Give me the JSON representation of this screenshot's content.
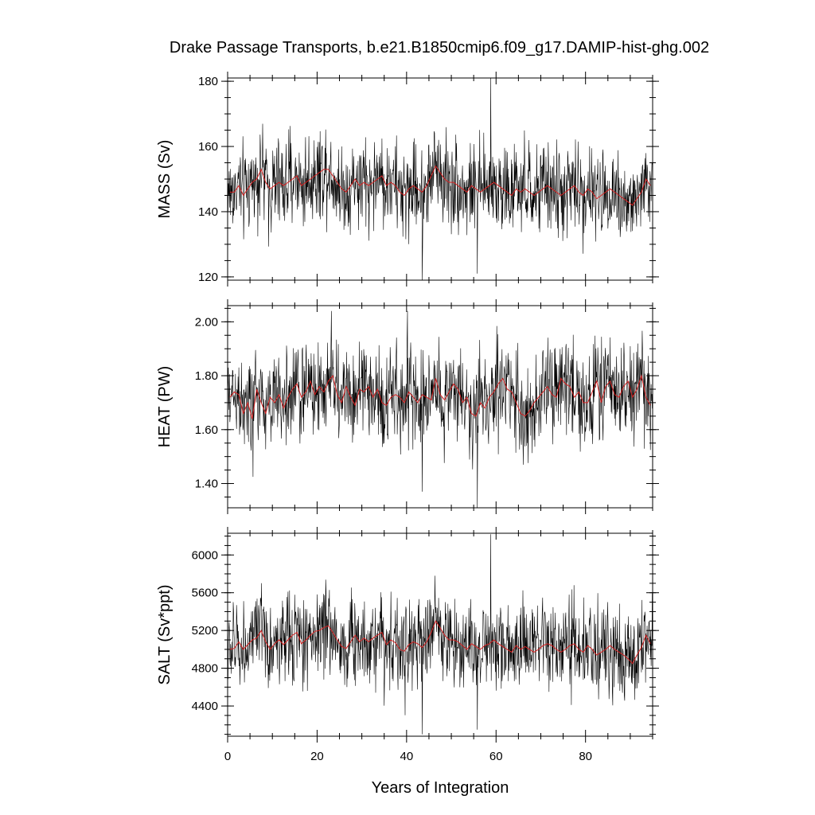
{
  "title": "Drake Passage Transports, b.e21.B1850cmip6.f09_g17.DAMIP-hist-ghg.002",
  "xlabel": "Years of Integration",
  "colors": {
    "raw": "#000000",
    "annual": "#d62020"
  },
  "chart_data": [
    {
      "type": "line",
      "panel": "mass",
      "ylabel": "MASS (Sv)",
      "xlim": [
        0,
        95
      ],
      "ylim": [
        119,
        181
      ],
      "yticks": [
        120,
        140,
        160,
        180
      ],
      "ytick_labels": [
        "120",
        "140",
        "160",
        "180"
      ],
      "xticks": [
        0,
        20,
        40,
        60,
        80
      ],
      "show_xtick_labels": false,
      "monthly_mean": 147.5,
      "monthly_std": 7,
      "annual_mean": [
        146,
        146,
        148,
        145,
        147,
        149,
        150,
        153,
        149,
        147,
        148,
        149,
        148,
        149,
        150,
        151,
        148,
        149,
        150,
        151,
        152,
        153,
        153,
        151,
        149,
        147,
        146,
        148,
        150,
        148,
        149,
        148,
        149,
        150,
        151,
        148,
        149,
        148,
        146,
        145,
        147,
        148,
        147,
        146,
        148,
        151,
        154,
        152,
        150,
        149,
        149,
        148,
        147,
        146,
        148,
        147,
        146,
        147,
        148,
        149,
        148,
        147,
        146,
        145,
        147,
        146,
        147,
        146,
        145,
        146,
        147,
        148,
        147,
        146,
        145,
        146,
        147,
        148,
        146,
        145,
        147,
        146,
        144,
        145,
        146,
        147,
        146,
        145,
        144,
        143,
        142,
        144,
        146,
        150,
        148
      ],
      "extremes": [
        [
          43.5,
          119
        ],
        [
          58.8,
          181
        ],
        [
          55.8,
          121
        ]
      ]
    },
    {
      "type": "line",
      "panel": "heat",
      "ylabel": "HEAT (PW)",
      "xlim": [
        0,
        95
      ],
      "ylim": [
        1.31,
        2.06
      ],
      "yticks": [
        1.4,
        1.6,
        1.8,
        2.0
      ],
      "ytick_labels": [
        "1.40",
        "1.60",
        "1.80",
        "2.00"
      ],
      "xticks": [
        0,
        20,
        40,
        60,
        80
      ],
      "show_xtick_labels": false,
      "monthly_mean": 1.72,
      "monthly_std": 0.09,
      "annual_mean": [
        1.72,
        1.74,
        1.73,
        1.66,
        1.7,
        1.64,
        1.75,
        1.7,
        1.66,
        1.72,
        1.7,
        1.73,
        1.68,
        1.72,
        1.75,
        1.77,
        1.72,
        1.74,
        1.78,
        1.73,
        1.76,
        1.74,
        1.78,
        1.8,
        1.73,
        1.7,
        1.76,
        1.72,
        1.69,
        1.75,
        1.74,
        1.76,
        1.72,
        1.75,
        1.7,
        1.69,
        1.72,
        1.73,
        1.72,
        1.7,
        1.74,
        1.72,
        1.7,
        1.73,
        1.72,
        1.71,
        1.79,
        1.73,
        1.71,
        1.74,
        1.77,
        1.75,
        1.7,
        1.72,
        1.66,
        1.65,
        1.7,
        1.68,
        1.72,
        1.74,
        1.77,
        1.79,
        1.75,
        1.74,
        1.7,
        1.66,
        1.65,
        1.67,
        1.7,
        1.72,
        1.74,
        1.76,
        1.73,
        1.72,
        1.79,
        1.77,
        1.76,
        1.72,
        1.74,
        1.7,
        1.7,
        1.74,
        1.78,
        1.7,
        1.76,
        1.78,
        1.73,
        1.72,
        1.76,
        1.78,
        1.72,
        1.75,
        1.8,
        1.72,
        1.69
      ],
      "extremes": [
        [
          23.2,
          2.04
        ],
        [
          55.8,
          1.31
        ],
        [
          43.5,
          1.37
        ],
        [
          40.2,
          2.04
        ]
      ]
    },
    {
      "type": "line",
      "panel": "salt",
      "ylabel": "SALT (Sv*ppt)",
      "xlim": [
        0,
        95
      ],
      "ylim": [
        4080,
        6230
      ],
      "yticks": [
        4400,
        4800,
        5200,
        5600,
        6000
      ],
      "ytick_labels": [
        "4400",
        "4800",
        "5200",
        "5600",
        "6000"
      ],
      "xticks": [
        0,
        20,
        40,
        60,
        80
      ],
      "xtick_labels": [
        "0",
        "20",
        "40",
        "60",
        "80"
      ],
      "show_xtick_labels": true,
      "monthly_mean": 5050,
      "monthly_std": 240,
      "annual_mean": [
        5000,
        5010,
        5080,
        5000,
        5050,
        5100,
        5120,
        5200,
        5080,
        5000,
        5060,
        5100,
        5050,
        5100,
        5150,
        5180,
        5060,
        5100,
        5150,
        5190,
        5200,
        5230,
        5250,
        5180,
        5100,
        5030,
        5010,
        5080,
        5150,
        5080,
        5120,
        5080,
        5120,
        5150,
        5180,
        5050,
        5100,
        5070,
        5000,
        4980,
        5050,
        5080,
        5060,
        5020,
        5080,
        5180,
        5300,
        5230,
        5150,
        5100,
        5100,
        5080,
        5040,
        5000,
        5060,
        5030,
        5000,
        5040,
        5060,
        5100,
        5060,
        5030,
        5000,
        4970,
        5040,
        5000,
        5030,
        5000,
        4970,
        5000,
        5040,
        5060,
        5040,
        5000,
        4970,
        5000,
        5040,
        5060,
        5000,
        4970,
        5040,
        5000,
        4940,
        4970,
        5000,
        5040,
        5000,
        4970,
        4940,
        4900,
        4850,
        4940,
        5020,
        5150,
        5060
      ],
      "extremes": [
        [
          43.5,
          4100
        ],
        [
          58.8,
          6220
        ],
        [
          55.8,
          4150
        ]
      ]
    }
  ]
}
